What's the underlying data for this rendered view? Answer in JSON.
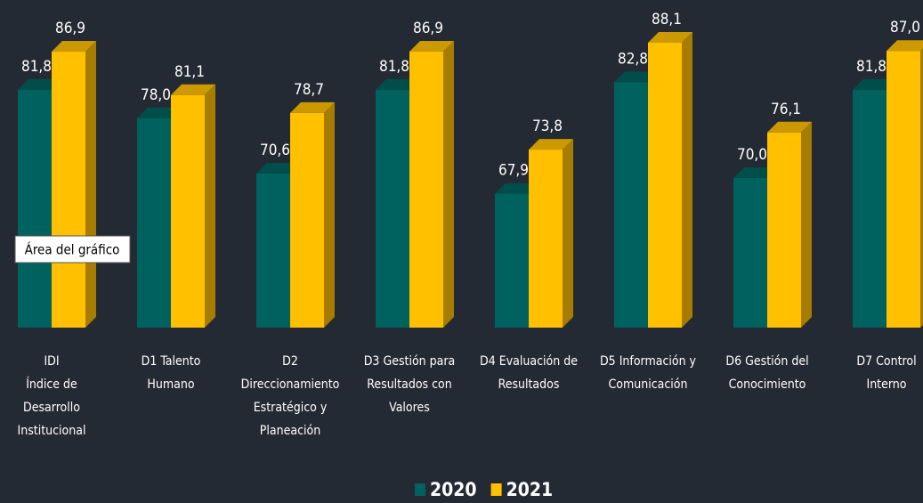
{
  "chart_data": {
    "type": "bar3d",
    "categories": [
      [
        "IDI",
        "Índice de",
        "Desarrollo",
        "Institucional"
      ],
      [
        "D1 Talento",
        "Humano"
      ],
      [
        "D2",
        "Direccionamiento",
        "Estratégico y",
        "Planeación"
      ],
      [
        "D3 Gestión para",
        "Resultados con",
        "Valores"
      ],
      [
        "D4 Evaluación de",
        "Resultados"
      ],
      [
        "D5 Información y",
        "Comunicación"
      ],
      [
        "D6 Gestión del",
        "Conocimiento"
      ],
      [
        "D7 Control",
        "Interno"
      ]
    ],
    "series": [
      {
        "name": "2020",
        "color": "#00625f",
        "values": [
          81.8,
          78.0,
          70.6,
          81.8,
          67.9,
          82.8,
          70.0,
          81.8
        ],
        "value_labels": [
          "81,8",
          "78,0",
          "70,6",
          "81,8",
          "67,9",
          "82,8",
          "70,0",
          "81,8"
        ]
      },
      {
        "name": "2021",
        "color": "#ffc000",
        "values": [
          86.9,
          81.1,
          78.7,
          86.9,
          73.8,
          88.1,
          76.1,
          87.0
        ],
        "value_labels": [
          "86,9",
          "81,1",
          "78,7",
          "86,9",
          "73,8",
          "88,1",
          "76,1",
          "87,0"
        ]
      }
    ],
    "ylim": [
      50,
      90
    ],
    "legend": "bottom",
    "tooltip": "Área del gráfico"
  }
}
